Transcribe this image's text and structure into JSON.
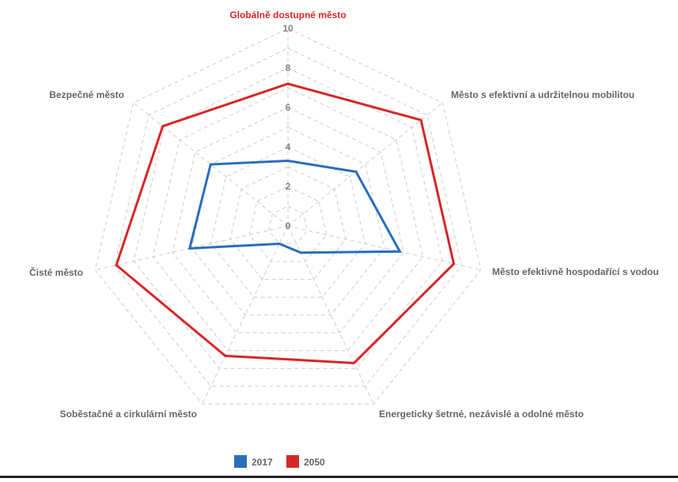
{
  "chart_data": {
    "type": "radar",
    "title": "",
    "axes": [
      "Globálně dostupné město",
      "Město s efektivní a udržitelnou mobilitou",
      "Město efektivně hospodařící s vodou",
      "Energeticky šetrné, nezávislé a odolné město",
      "Soběstačné a cirkulární město",
      "Čisté město",
      "Bezpečné město"
    ],
    "highlighted_axis": 0,
    "ticks": [
      "0",
      "2",
      "4",
      "6",
      "8",
      "10"
    ],
    "range": [
      0,
      10
    ],
    "grid": true,
    "legend_position": "bottom",
    "series": [
      {
        "name": "2017",
        "color": "#2a6ebb",
        "values": [
          3.3,
          4.4,
          5.8,
          1.5,
          1.0,
          5.1,
          5.0
        ]
      },
      {
        "name": "2050",
        "color": "#d62728",
        "values": [
          7.2,
          8.6,
          8.6,
          7.7,
          7.3,
          8.9,
          8.1
        ]
      }
    ]
  }
}
